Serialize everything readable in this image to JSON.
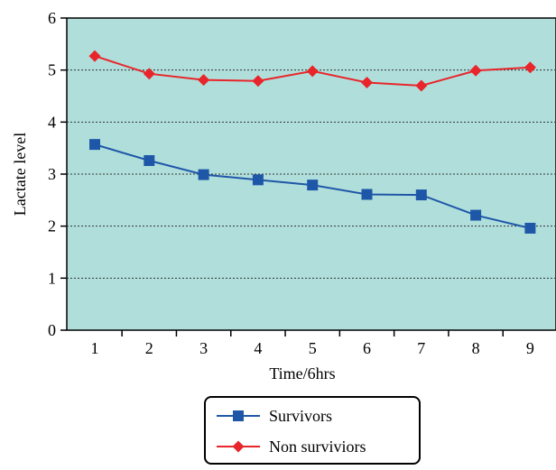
{
  "chart_data": {
    "type": "line",
    "title": "",
    "xlabel": "Time/6hrs",
    "ylabel": "Lactate level",
    "categories": [
      "1",
      "2",
      "3",
      "4",
      "5",
      "6",
      "7",
      "8",
      "9"
    ],
    "yticks": [
      "0",
      "1",
      "2",
      "3",
      "4",
      "5",
      "6"
    ],
    "ylim": [
      0,
      6
    ],
    "grid": true,
    "plot_background": "#b0dfdb",
    "legend_position": "bottom",
    "series": [
      {
        "name": "Survivors",
        "color": "#1f57a8",
        "marker": "square",
        "values": [
          3.57,
          3.26,
          2.99,
          2.89,
          2.79,
          2.61,
          2.6,
          2.21,
          1.96
        ]
      },
      {
        "name": "Non surviviors",
        "color": "#e8252a",
        "marker": "diamond",
        "values": [
          5.27,
          4.93,
          4.81,
          4.79,
          4.98,
          4.76,
          4.7,
          4.99,
          5.05
        ]
      }
    ]
  }
}
